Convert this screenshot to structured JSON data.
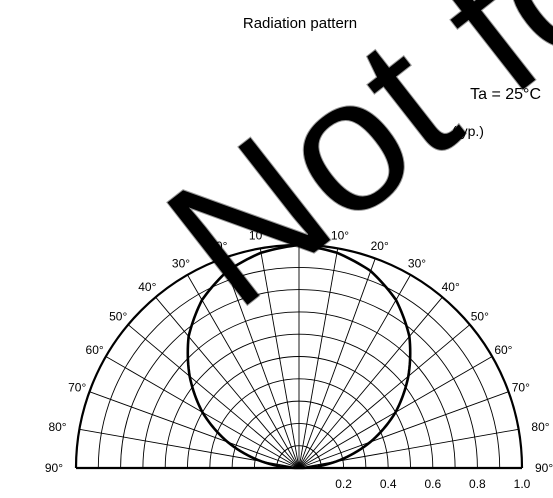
{
  "chart_data": {
    "type": "polar",
    "title": "Radiation pattern",
    "condition_line1": "Ta = 25°C",
    "condition_line2": "(typ.)",
    "watermark": "Not for",
    "angle_ticks": [
      0,
      10,
      20,
      30,
      40,
      50,
      60,
      70,
      80,
      90
    ],
    "radial_ticks": [
      0.2,
      0.4,
      0.6,
      0.8,
      1.0
    ],
    "radial_tick_labels": [
      "0.2",
      "0.4",
      "0.6",
      "0.8",
      "1.0"
    ],
    "degree_symbol": "°",
    "rlim": [
      0,
      1.0
    ],
    "theta_range": [
      -90,
      90
    ],
    "grid": true,
    "series": [
      {
        "angles": [
          -90,
          -80,
          -70,
          -60,
          -50,
          -40,
          -30,
          -20,
          -10,
          0,
          10,
          20,
          30,
          40,
          50,
          60,
          70,
          80,
          90
        ],
        "values": [
          0.0,
          0.17,
          0.34,
          0.5,
          0.64,
          0.77,
          0.87,
          0.94,
          0.98,
          1.0,
          0.98,
          0.94,
          0.87,
          0.77,
          0.64,
          0.5,
          0.34,
          0.17,
          0.0
        ]
      }
    ]
  }
}
